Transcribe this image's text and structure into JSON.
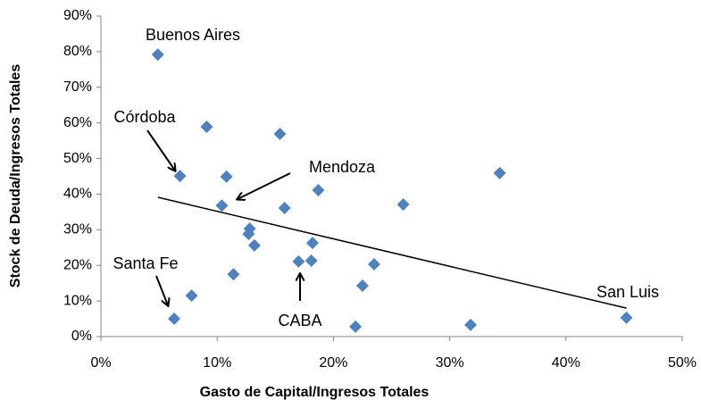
{
  "chart_data": {
    "type": "scatter",
    "xlabel": "Gasto de Capital/Ingresos Totales",
    "ylabel": "Stock de Deuda/Ingresos Totales",
    "xlim": [
      0,
      50
    ],
    "ylim": [
      0,
      90
    ],
    "xticks": [
      {
        "value": 0,
        "label": "0%"
      },
      {
        "value": 10,
        "label": "10%"
      },
      {
        "value": 20,
        "label": "20%"
      },
      {
        "value": 30,
        "label": "30%"
      },
      {
        "value": 40,
        "label": "40%"
      },
      {
        "value": 50,
        "label": "50%"
      }
    ],
    "yticks": [
      {
        "value": 0,
        "label": "0%"
      },
      {
        "value": 10,
        "label": "10%"
      },
      {
        "value": 20,
        "label": "20%"
      },
      {
        "value": 30,
        "label": "30%"
      },
      {
        "value": 40,
        "label": "40%"
      },
      {
        "value": 50,
        "label": "50%"
      },
      {
        "value": 60,
        "label": "60%"
      },
      {
        "value": 70,
        "label": "70%"
      },
      {
        "value": 80,
        "label": "80%"
      },
      {
        "value": 90,
        "label": "90%"
      }
    ],
    "color": "#4f81bd",
    "x": [
      4.9,
      9.1,
      15.4,
      6.8,
      10.8,
      34.3,
      18.7,
      26.0,
      10.4,
      15.8,
      12.8,
      12.7,
      13.2,
      18.2,
      11.4,
      17.0,
      18.1,
      23.5,
      22.5,
      7.8,
      6.3,
      21.9,
      31.8,
      45.2
    ],
    "values": [
      79.2,
      58.9,
      56.9,
      45.1,
      44.9,
      45.9,
      41.1,
      37.1,
      36.8,
      36.1,
      30.3,
      28.8,
      25.6,
      26.3,
      17.5,
      21.1,
      21.3,
      20.3,
      14.3,
      11.5,
      5.0,
      2.8,
      3.3,
      5.3
    ],
    "trendline": {
      "x": [
        4.9,
        45.2
      ],
      "values": [
        39.1,
        8.0
      ]
    },
    "annotations": [
      "Buenos Aires",
      "Córdoba",
      "Mendoza",
      "Santa Fe",
      "CABA",
      "San Luis"
    ]
  }
}
